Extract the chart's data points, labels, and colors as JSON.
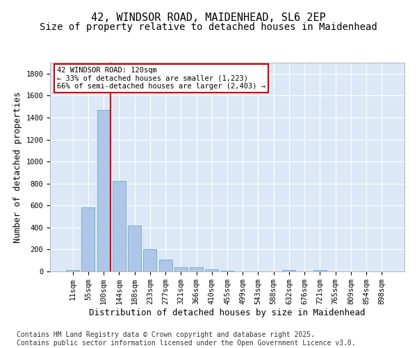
{
  "title1": "42, WINDSOR ROAD, MAIDENHEAD, SL6 2EP",
  "title2": "Size of property relative to detached houses in Maidenhead",
  "xlabel": "Distribution of detached houses by size in Maidenhead",
  "ylabel": "Number of detached properties",
  "categories": [
    "11sqm",
    "55sqm",
    "100sqm",
    "144sqm",
    "188sqm",
    "233sqm",
    "277sqm",
    "321sqm",
    "366sqm",
    "410sqm",
    "455sqm",
    "499sqm",
    "543sqm",
    "588sqm",
    "632sqm",
    "676sqm",
    "721sqm",
    "765sqm",
    "809sqm",
    "854sqm",
    "898sqm"
  ],
  "values": [
    15,
    585,
    1470,
    825,
    415,
    200,
    105,
    38,
    35,
    22,
    8,
    0,
    0,
    0,
    12,
    0,
    10,
    0,
    0,
    0,
    0
  ],
  "bar_color": "#aec6e8",
  "bar_edge_color": "#7aafd4",
  "vline_color": "#cc0000",
  "vline_bar_index": 2,
  "annotation_text": "42 WINDSOR ROAD: 120sqm\n← 33% of detached houses are smaller (1,223)\n66% of semi-detached houses are larger (2,403) →",
  "annotation_box_color": "#ffffff",
  "annotation_box_edge": "#cc0000",
  "ylim": [
    0,
    1900
  ],
  "yticks": [
    0,
    200,
    400,
    600,
    800,
    1000,
    1200,
    1400,
    1600,
    1800
  ],
  "bg_color": "#dce8f5",
  "footer": "Contains HM Land Registry data © Crown copyright and database right 2025.\nContains public sector information licensed under the Open Government Licence v3.0.",
  "title_fontsize": 11,
  "subtitle_fontsize": 10,
  "axis_label_fontsize": 9,
  "tick_fontsize": 7.5,
  "annotation_fontsize": 7.5,
  "footer_fontsize": 7
}
